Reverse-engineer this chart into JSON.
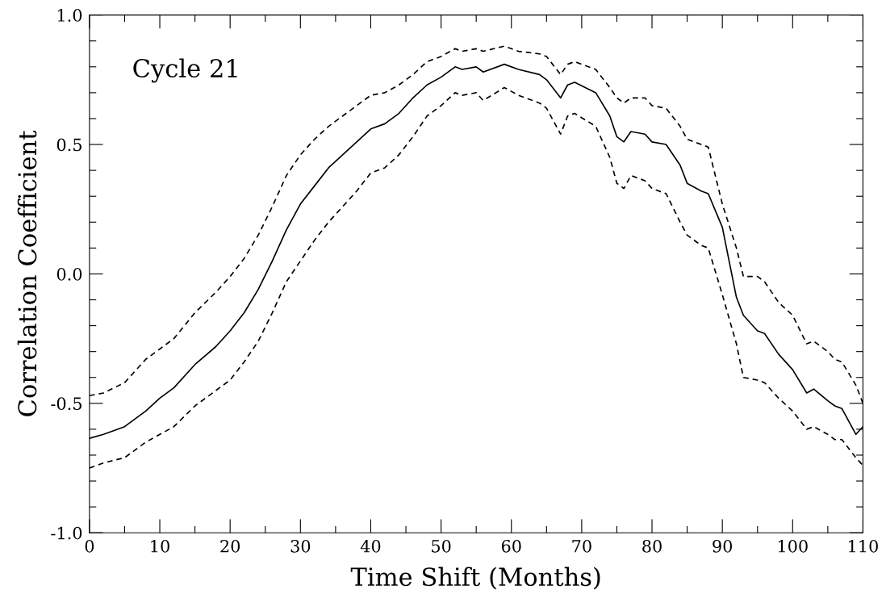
{
  "chart_data": {
    "type": "line",
    "xlabel": "Time Shift (Months)",
    "ylabel": "Correlation Coefficient",
    "annotations": [
      "Cycle 21"
    ],
    "x": [
      0,
      2,
      5,
      8,
      10,
      12,
      15,
      18,
      20,
      22,
      24,
      26,
      28,
      30,
      32,
      34,
      36,
      38,
      40,
      42,
      44,
      46,
      48,
      50,
      52,
      53,
      55,
      56,
      59,
      61,
      64,
      65,
      67,
      68,
      69,
      72,
      74,
      75,
      76,
      77,
      79,
      80,
      82,
      84,
      85,
      87,
      88,
      90,
      92,
      93,
      95,
      96,
      98,
      100,
      102,
      103,
      105,
      106,
      107,
      109,
      110
    ],
    "series": [
      {
        "color": "#000000",
        "line_style": "solid",
        "values": [
          -0.635,
          -0.62,
          -0.59,
          -0.53,
          -0.48,
          -0.44,
          -0.35,
          -0.28,
          -0.22,
          -0.15,
          -0.06,
          0.05,
          0.17,
          0.27,
          0.34,
          0.41,
          0.46,
          0.51,
          0.56,
          0.58,
          0.62,
          0.68,
          0.73,
          0.76,
          0.8,
          0.79,
          0.8,
          0.78,
          0.81,
          0.79,
          0.77,
          0.75,
          0.68,
          0.73,
          0.74,
          0.7,
          0.61,
          0.53,
          0.51,
          0.55,
          0.54,
          0.51,
          0.5,
          0.42,
          0.35,
          0.32,
          0.31,
          0.18,
          -0.09,
          -0.16,
          -0.22,
          -0.23,
          -0.31,
          -0.37,
          -0.46,
          -0.445,
          -0.49,
          -0.51,
          -0.52,
          -0.62,
          -0.59
        ]
      },
      {
        "color": "#000000",
        "line_style": "dashed",
        "values": [
          -0.47,
          -0.46,
          -0.42,
          -0.33,
          -0.29,
          -0.25,
          -0.15,
          -0.07,
          -0.01,
          0.06,
          0.15,
          0.26,
          0.38,
          0.46,
          0.52,
          0.57,
          0.61,
          0.65,
          0.69,
          0.7,
          0.73,
          0.77,
          0.82,
          0.84,
          0.87,
          0.86,
          0.87,
          0.86,
          0.88,
          0.86,
          0.85,
          0.84,
          0.77,
          0.81,
          0.82,
          0.79,
          0.72,
          0.68,
          0.66,
          0.68,
          0.68,
          0.65,
          0.64,
          0.57,
          0.52,
          0.5,
          0.49,
          0.27,
          0.1,
          -0.01,
          -0.01,
          -0.03,
          -0.11,
          -0.16,
          -0.27,
          -0.26,
          -0.3,
          -0.33,
          -0.34,
          -0.43,
          -0.5
        ]
      },
      {
        "color": "#000000",
        "line_style": "dashed",
        "values": [
          -0.75,
          -0.73,
          -0.71,
          -0.65,
          -0.62,
          -0.59,
          -0.51,
          -0.45,
          -0.41,
          -0.34,
          -0.26,
          -0.15,
          -0.03,
          0.05,
          0.13,
          0.2,
          0.26,
          0.32,
          0.39,
          0.41,
          0.46,
          0.53,
          0.61,
          0.65,
          0.7,
          0.69,
          0.7,
          0.67,
          0.72,
          0.69,
          0.66,
          0.64,
          0.54,
          0.61,
          0.62,
          0.57,
          0.45,
          0.35,
          0.33,
          0.38,
          0.36,
          0.33,
          0.31,
          0.2,
          0.15,
          0.11,
          0.1,
          -0.08,
          -0.27,
          -0.4,
          -0.41,
          -0.42,
          -0.48,
          -0.53,
          -0.6,
          -0.59,
          -0.62,
          -0.64,
          -0.64,
          -0.71,
          -0.74
        ]
      }
    ],
    "xlim": [
      0,
      110
    ],
    "xticks": [
      0,
      {
        "value": 5,
        "label": null
      },
      10,
      {
        "value": 15,
        "label": null
      },
      20,
      {
        "value": 25,
        "label": null
      },
      30,
      {
        "value": 35,
        "label": null
      },
      40,
      {
        "value": 45,
        "label": null
      },
      50,
      {
        "value": 55,
        "label": null
      },
      60,
      {
        "value": 65,
        "label": null
      },
      70,
      {
        "value": 75,
        "label": null
      },
      80,
      {
        "value": 85,
        "label": null
      },
      90,
      {
        "value": 95,
        "label": null
      },
      100,
      {
        "value": 105,
        "label": null
      },
      110
    ],
    "ylim": [
      -1.0,
      1.0
    ],
    "yticks": [
      {
        "value": -1.0,
        "label": "-1.0"
      },
      {
        "value": -0.9,
        "label": null
      },
      {
        "value": -0.8,
        "label": null
      },
      {
        "value": -0.7,
        "label": null
      },
      {
        "value": -0.6,
        "label": null
      },
      {
        "value": -0.5,
        "label": "-0.5"
      },
      {
        "value": -0.4,
        "label": null
      },
      {
        "value": -0.3,
        "label": null
      },
      {
        "value": -0.2,
        "label": null
      },
      {
        "value": -0.1,
        "label": null
      },
      {
        "value": 0.0,
        "label": "0.0"
      },
      {
        "value": 0.1,
        "label": null
      },
      {
        "value": 0.2,
        "label": null
      },
      {
        "value": 0.3,
        "label": null
      },
      {
        "value": 0.4,
        "label": null
      },
      {
        "value": 0.5,
        "label": "0.5"
      },
      {
        "value": 0.6,
        "label": null
      },
      {
        "value": 0.7,
        "label": null
      },
      {
        "value": 0.8,
        "label": null
      },
      {
        "value": 0.9,
        "label": null
      },
      {
        "value": 1.0,
        "label": "1.0"
      }
    ],
    "grid": false,
    "marker": "none"
  }
}
